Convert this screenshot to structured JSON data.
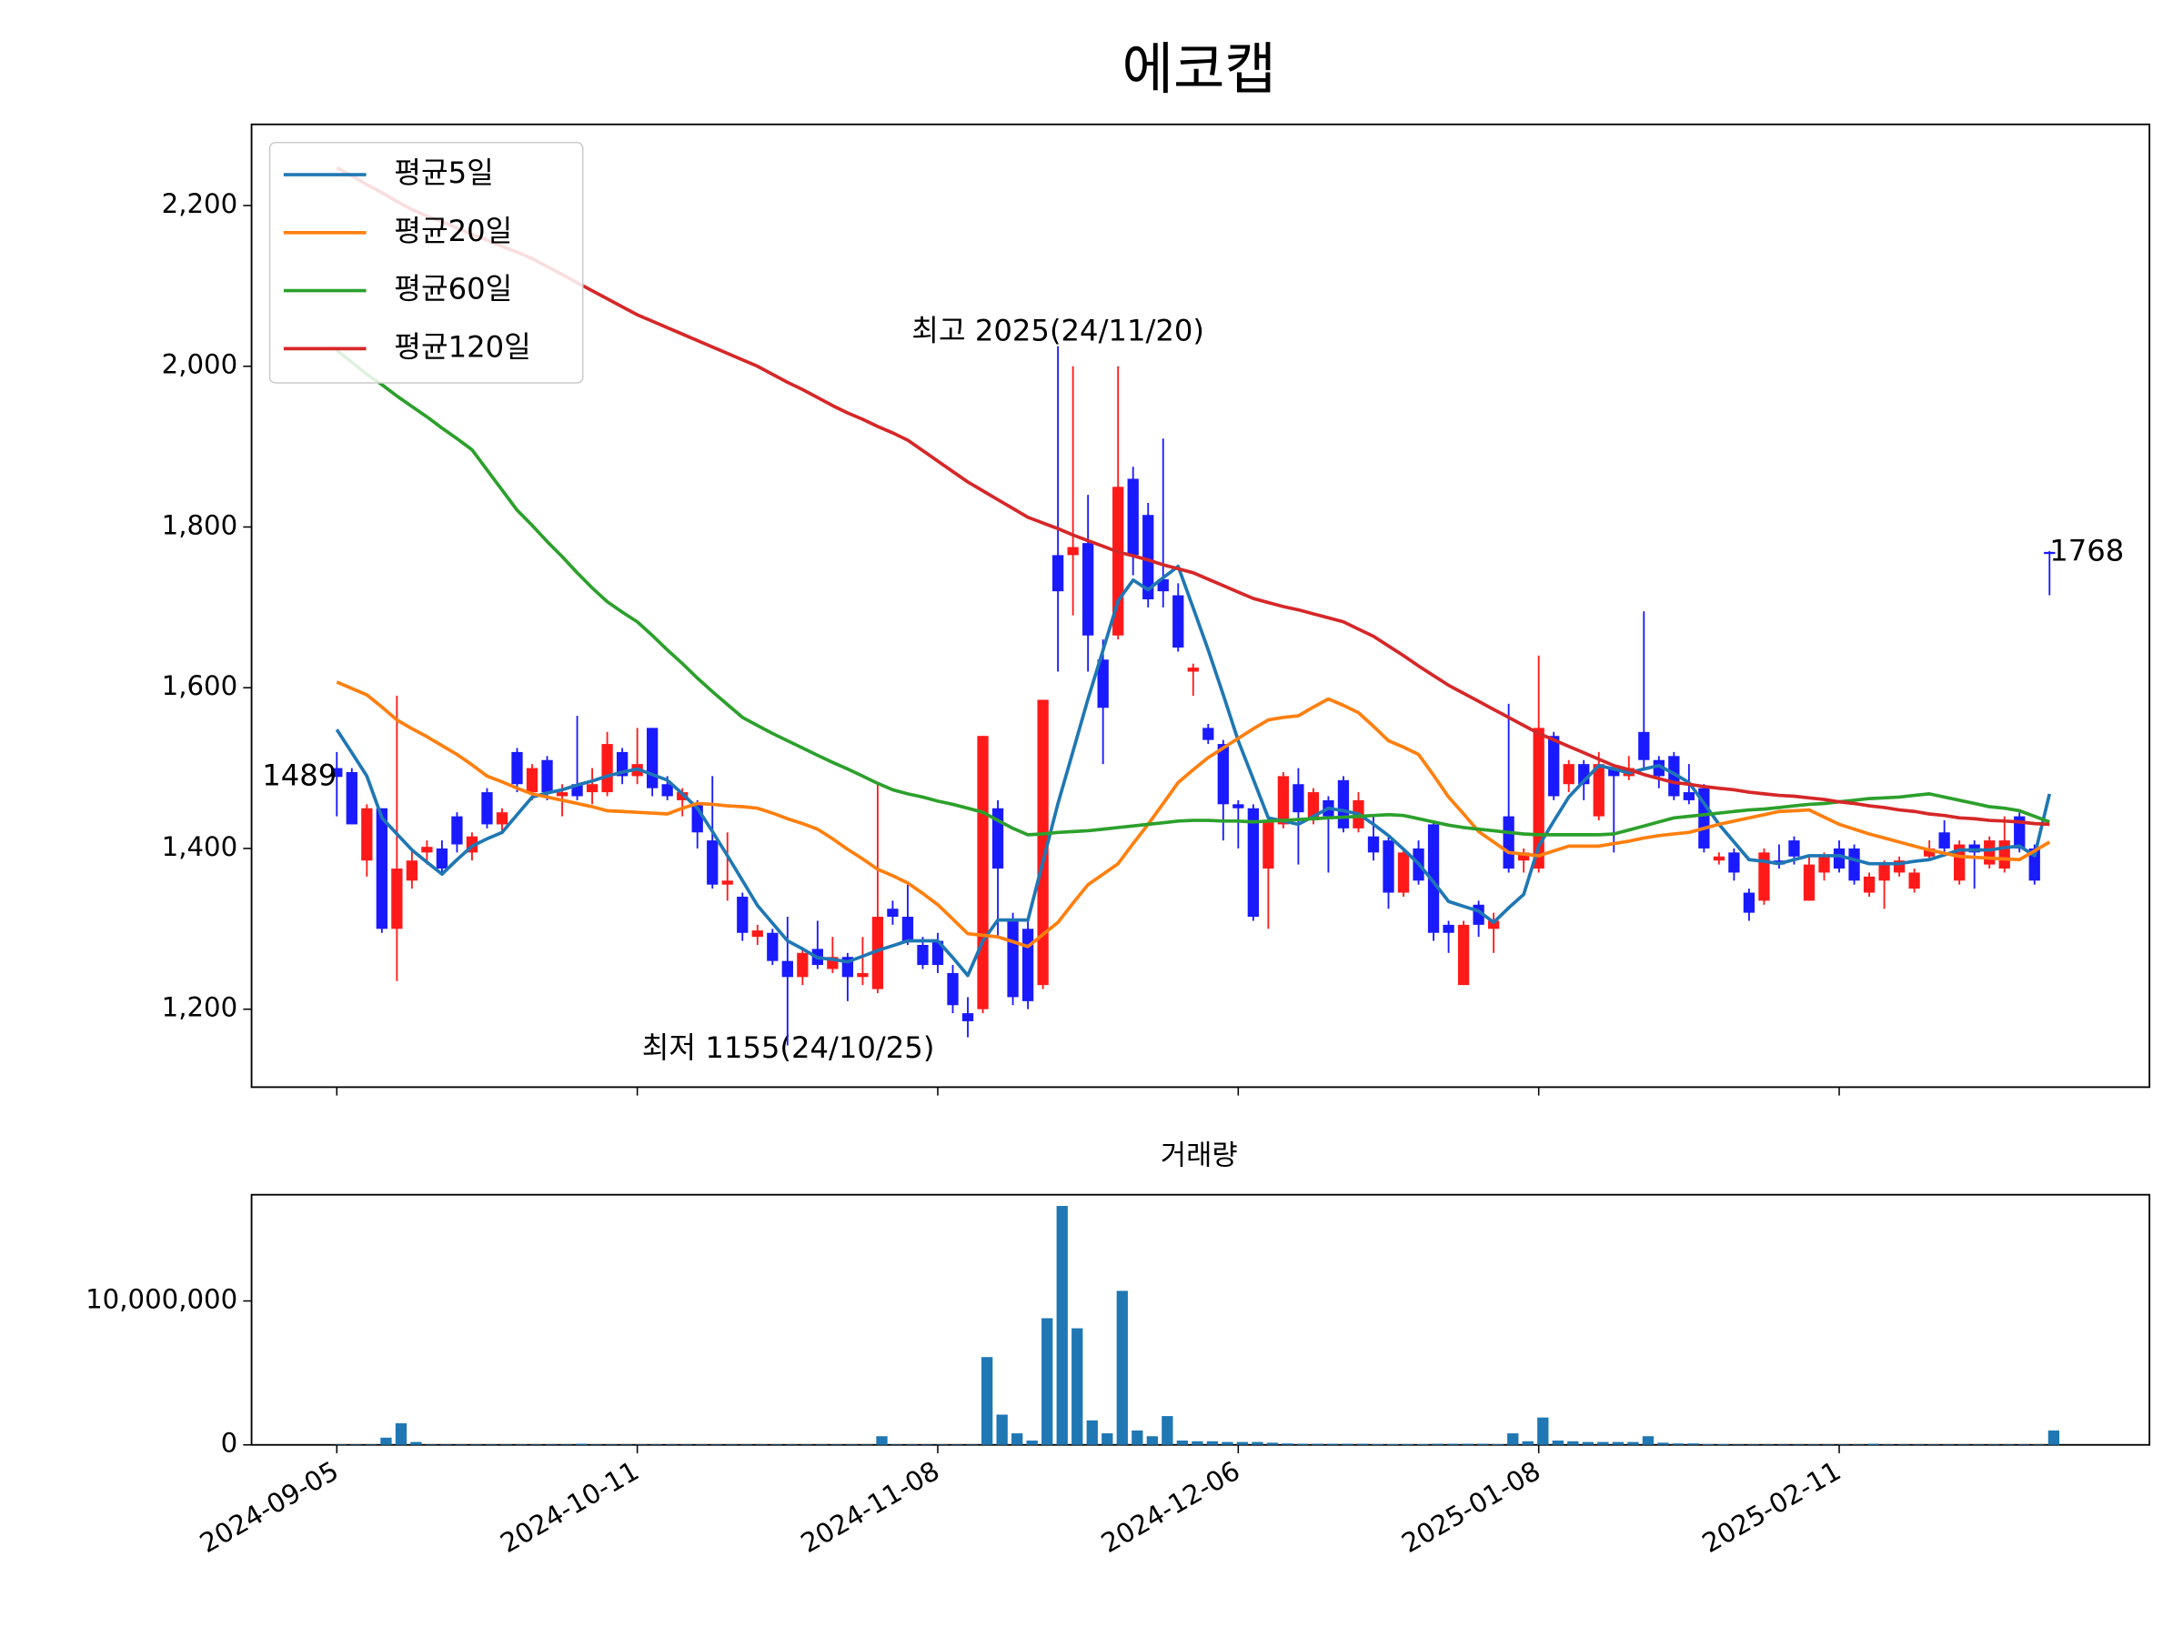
{
  "chart_data": [
    {
      "type": "candlestick",
      "title": "에코캡",
      "categories": [
        "2024-09-05",
        null,
        null,
        null,
        null,
        null,
        null,
        null,
        null,
        null,
        null,
        null,
        null,
        null,
        null,
        null,
        null,
        null,
        null,
        null,
        "2024-10-11",
        null,
        null,
        null,
        null,
        null,
        null,
        null,
        null,
        null,
        null,
        null,
        null,
        null,
        null,
        null,
        null,
        null,
        null,
        null,
        "2024-11-08",
        null,
        null,
        null,
        null,
        null,
        null,
        null,
        null,
        null,
        null,
        null,
        null,
        null,
        null,
        null,
        null,
        null,
        null,
        null,
        "2024-12-06",
        null,
        null,
        null,
        null,
        null,
        null,
        null,
        null,
        null,
        null,
        null,
        null,
        null,
        null,
        null,
        null,
        null,
        null,
        null,
        "2025-01-08",
        null,
        null,
        null,
        null,
        null,
        null,
        null,
        null,
        null,
        null,
        null,
        null,
        null,
        null,
        null,
        null,
        null,
        null,
        null,
        "2025-02-11",
        null,
        null,
        null,
        null,
        null,
        null,
        null,
        null,
        null,
        null,
        null,
        null,
        null,
        null
      ],
      "open": [
        1500,
        1495,
        1385,
        1450,
        1300,
        1360,
        1395,
        1400,
        1440,
        1395,
        1470,
        1430,
        1520,
        1470,
        1510,
        1465,
        1480,
        1470,
        1470,
        1520,
        1490,
        1550,
        1480,
        1460,
        1455,
        1410,
        1355,
        1340,
        1290,
        1295,
        1260,
        1240,
        1275,
        1250,
        1265,
        1240,
        1225,
        1325,
        1315,
        1280,
        1285,
        1245,
        1195,
        1200,
        1450,
        1310,
        1300,
        1230,
        1765,
        1765,
        1780,
        1635,
        1665,
        1860,
        1815,
        1735,
        1715,
        1620,
        1550,
        1530,
        1455,
        1450,
        1375,
        1430,
        1480,
        1435,
        1460,
        1485,
        1425,
        1415,
        1410,
        1345,
        1400,
        1430,
        1305,
        1230,
        1330,
        1300,
        1440,
        1385,
        1375,
        1540,
        1480,
        1505,
        1440,
        1500,
        1490,
        1545,
        1510,
        1515,
        1470,
        1475,
        1385,
        1395,
        1345,
        1335,
        1385,
        1410,
        1335,
        1370,
        1400,
        1400,
        1345,
        1360,
        1370,
        1350,
        1390,
        1420,
        1360,
        1405,
        1380,
        1375,
        1440,
        1400,
        1769
      ],
      "high": [
        1520,
        1500,
        1455,
        1450,
        1590,
        1400,
        1410,
        1410,
        1445,
        1420,
        1475,
        1450,
        1525,
        1505,
        1515,
        1480,
        1565,
        1500,
        1545,
        1525,
        1550,
        1550,
        1490,
        1475,
        1460,
        1490,
        1420,
        1345,
        1305,
        1300,
        1315,
        1275,
        1310,
        1290,
        1270,
        1290,
        1480,
        1335,
        1355,
        1290,
        1295,
        1255,
        1215,
        1540,
        1460,
        1320,
        1310,
        1585,
        2025,
        2000,
        1840,
        1660,
        2000,
        1875,
        1830,
        1910,
        1730,
        1630,
        1555,
        1535,
        1460,
        1455,
        1440,
        1495,
        1500,
        1475,
        1465,
        1490,
        1470,
        1440,
        1415,
        1400,
        1410,
        1435,
        1310,
        1310,
        1335,
        1320,
        1580,
        1400,
        1640,
        1545,
        1510,
        1510,
        1520,
        1505,
        1515,
        1695,
        1515,
        1520,
        1505,
        1480,
        1395,
        1400,
        1350,
        1400,
        1405,
        1415,
        1390,
        1395,
        1410,
        1405,
        1370,
        1385,
        1390,
        1375,
        1410,
        1435,
        1410,
        1410,
        1415,
        1440,
        1445,
        1405,
        1770
      ],
      "low": [
        1440,
        1430,
        1365,
        1295,
        1235,
        1350,
        1380,
        1370,
        1395,
        1385,
        1425,
        1420,
        1470,
        1460,
        1460,
        1440,
        1460,
        1455,
        1465,
        1480,
        1480,
        1465,
        1460,
        1440,
        1400,
        1350,
        1335,
        1285,
        1280,
        1255,
        1155,
        1230,
        1250,
        1245,
        1210,
        1230,
        1220,
        1305,
        1280,
        1250,
        1245,
        1195,
        1165,
        1195,
        1290,
        1205,
        1200,
        1225,
        1620,
        1690,
        1620,
        1505,
        1660,
        1740,
        1700,
        1700,
        1645,
        1590,
        1530,
        1410,
        1400,
        1310,
        1300,
        1425,
        1380,
        1430,
        1370,
        1420,
        1420,
        1385,
        1325,
        1340,
        1355,
        1285,
        1270,
        1230,
        1290,
        1270,
        1370,
        1370,
        1370,
        1460,
        1470,
        1460,
        1435,
        1395,
        1485,
        1500,
        1475,
        1460,
        1455,
        1395,
        1380,
        1360,
        1310,
        1330,
        1375,
        1380,
        1335,
        1360,
        1370,
        1355,
        1340,
        1325,
        1365,
        1345,
        1385,
        1395,
        1355,
        1350,
        1375,
        1370,
        1395,
        1355,
        1715
      ],
      "close": [
        1489,
        1430,
        1450,
        1300,
        1375,
        1385,
        1402,
        1375,
        1405,
        1415,
        1430,
        1445,
        1480,
        1500,
        1470,
        1470,
        1465,
        1480,
        1530,
        1490,
        1505,
        1475,
        1465,
        1470,
        1420,
        1355,
        1360,
        1295,
        1298,
        1260,
        1240,
        1270,
        1255,
        1265,
        1240,
        1245,
        1315,
        1315,
        1285,
        1255,
        1255,
        1205,
        1185,
        1540,
        1375,
        1215,
        1210,
        1585,
        1720,
        1775,
        1665,
        1575,
        1850,
        1765,
        1710,
        1720,
        1650,
        1625,
        1535,
        1455,
        1450,
        1315,
        1435,
        1490,
        1445,
        1470,
        1440,
        1425,
        1460,
        1395,
        1345,
        1395,
        1360,
        1295,
        1295,
        1305,
        1305,
        1310,
        1375,
        1395,
        1550,
        1465,
        1505,
        1480,
        1505,
        1490,
        1500,
        1510,
        1490,
        1465,
        1460,
        1400,
        1390,
        1370,
        1320,
        1395,
        1380,
        1390,
        1380,
        1390,
        1375,
        1360,
        1365,
        1380,
        1385,
        1370,
        1400,
        1400,
        1405,
        1395,
        1410,
        1410,
        1400,
        1360,
        1768
      ],
      "up_color": "#ff1a1a",
      "down_color": "#1a1aff",
      "ylim": [
        1103,
        2301
      ],
      "yticks": [
        {
          "value": 1200,
          "label": "1,200"
        },
        {
          "value": 1400,
          "label": "1,400"
        },
        {
          "value": 1600,
          "label": "1,600"
        },
        {
          "value": 1800,
          "label": "1,800"
        },
        {
          "value": 2000,
          "label": "2,000"
        },
        {
          "value": 2200,
          "label": "2,200"
        }
      ],
      "legend": "upper left",
      "series": [
        {
          "name": "평균5일",
          "color": "#1f77b4",
          "values": [
            1548,
            1519,
            1490,
            1438,
            1418,
            1398,
            1383,
            1368,
            1386,
            1403,
            1412,
            1420,
            1442,
            1464,
            1469,
            1473,
            1479,
            1484,
            1490,
            1495,
            1499,
            1492,
            1485,
            1468,
            1450,
            1421,
            1391,
            1360,
            1329,
            1307,
            1285,
            1275,
            1264,
            1262,
            1259,
            1266,
            1273,
            1279,
            1285,
            1285,
            1285,
            1264,
            1242,
            1285,
            1311,
            1311,
            1311,
            1384,
            1456,
            1521,
            1586,
            1647,
            1708,
            1734,
            1722,
            1737,
            1751,
            1699,
            1647,
            1591,
            1534,
            1486,
            1438,
            1434,
            1430,
            1440,
            1450,
            1447,
            1443,
            1430,
            1416,
            1399,
            1381,
            1358,
            1334,
            1328,
            1322,
            1308,
            1326,
            1343,
            1403,
            1434,
            1464,
            1484,
            1503,
            1499,
            1494,
            1499,
            1503,
            1493,
            1482,
            1456,
            1430,
            1408,
            1386,
            1384,
            1381,
            1386,
            1391,
            1391,
            1391,
            1386,
            1381,
            1381,
            1381,
            1384,
            1386,
            1392,
            1398,
            1398,
            1398,
            1401,
            1403,
            1391,
            1468
          ]
        },
        {
          "name": "평균20일",
          "color": "#ff7f0e",
          "values": [
            1607,
            1599,
            1591,
            1576,
            1560,
            1549,
            1539,
            1528,
            1517,
            1504,
            1490,
            1483,
            1475,
            1468,
            1464,
            1460,
            1456,
            1452,
            1447,
            1446,
            1445,
            1444,
            1443,
            1450,
            1456,
            1455,
            1453,
            1452,
            1450,
            1444,
            1437,
            1431,
            1424,
            1412,
            1399,
            1387,
            1374,
            1366,
            1357,
            1344,
            1330,
            1312,
            1294,
            1292,
            1290,
            1284,
            1278,
            1293,
            1308,
            1332,
            1355,
            1368,
            1381,
            1406,
            1430,
            1456,
            1482,
            1498,
            1513,
            1525,
            1537,
            1549,
            1560,
            1563,
            1565,
            1576,
            1586,
            1578,
            1569,
            1552,
            1534,
            1526,
            1517,
            1491,
            1464,
            1443,
            1421,
            1408,
            1395,
            1393,
            1391,
            1397,
            1403,
            1403,
            1403,
            1406,
            1409,
            1413,
            1416,
            1418,
            1420,
            1425,
            1430,
            1434,
            1438,
            1442,
            1446,
            1447,
            1448,
            1439,
            1430,
            1424,
            1418,
            1413,
            1408,
            1403,
            1398,
            1394,
            1390,
            1389,
            1388,
            1387,
            1386,
            1397,
            1408
          ]
        },
        {
          "name": "평균60일",
          "color": "#2ca02c",
          "values": [
            2020,
            2005,
            1990,
            1977,
            1963,
            1950,
            1937,
            1923,
            1910,
            1896,
            1871,
            1846,
            1821,
            1802,
            1782,
            1763,
            1743,
            1724,
            1707,
            1694,
            1682,
            1665,
            1647,
            1630,
            1612,
            1595,
            1579,
            1563,
            1553,
            1543,
            1534,
            1525,
            1516,
            1507,
            1499,
            1490,
            1481,
            1473,
            1468,
            1464,
            1459,
            1455,
            1450,
            1445,
            1435,
            1425,
            1417,
            1418,
            1420,
            1421,
            1422,
            1424,
            1426,
            1428,
            1430,
            1432,
            1434,
            1435,
            1435,
            1434,
            1434,
            1433,
            1434,
            1435,
            1436,
            1437,
            1438,
            1439,
            1440,
            1441,
            1442,
            1441,
            1437,
            1433,
            1429,
            1426,
            1424,
            1422,
            1420,
            1418,
            1417,
            1417,
            1417,
            1417,
            1417,
            1418,
            1423,
            1428,
            1433,
            1438,
            1440,
            1442,
            1444,
            1446,
            1448,
            1449,
            1451,
            1453,
            1455,
            1456,
            1458,
            1460,
            1462,
            1463,
            1464,
            1466,
            1468,
            1464,
            1460,
            1456,
            1452,
            1450,
            1447,
            1440,
            1433
          ]
        },
        {
          "name": "평균120일",
          "color": "#d62728",
          "values": [
            2247,
            2237,
            2226,
            2216,
            2205,
            2195,
            2187,
            2180,
            2172,
            2164,
            2157,
            2149,
            2142,
            2134,
            2124,
            2114,
            2104,
            2094,
            2084,
            2074,
            2064,
            2056,
            2048,
            2040,
            2032,
            2024,
            2016,
            2008,
            2000,
            1990,
            1980,
            1971,
            1961,
            1951,
            1942,
            1934,
            1925,
            1917,
            1908,
            1895,
            1882,
            1869,
            1856,
            1845,
            1834,
            1823,
            1812,
            1805,
            1798,
            1790,
            1783,
            1776,
            1769,
            1764,
            1759,
            1753,
            1748,
            1743,
            1735,
            1727,
            1719,
            1711,
            1706,
            1701,
            1697,
            1692,
            1687,
            1682,
            1673,
            1664,
            1652,
            1640,
            1627,
            1615,
            1603,
            1593,
            1583,
            1573,
            1563,
            1553,
            1543,
            1535,
            1527,
            1519,
            1511,
            1503,
            1498,
            1492,
            1487,
            1482,
            1480,
            1477,
            1475,
            1473,
            1470,
            1468,
            1466,
            1465,
            1463,
            1461,
            1458,
            1456,
            1453,
            1451,
            1448,
            1446,
            1443,
            1441,
            1438,
            1437,
            1435,
            1434,
            1433,
            1431,
            1430
          ]
        }
      ],
      "annotations": [
        {
          "text": "최고 2025(24/11/20)",
          "color": "#ff0000"
        },
        {
          "text": "최저 1155(24/10/25)",
          "color": "#0000ff"
        }
      ]
    },
    {
      "type": "bar",
      "title": "거래량",
      "color": "#1f77b4",
      "values": [
        30000,
        30000,
        30000,
        500000,
        1500000,
        200000,
        30000,
        30000,
        30000,
        30000,
        30000,
        30000,
        30000,
        30000,
        30000,
        30000,
        80000,
        30000,
        30000,
        30000,
        30000,
        30000,
        30000,
        30000,
        30000,
        30000,
        30000,
        30000,
        30000,
        30000,
        30000,
        30000,
        30000,
        30000,
        30000,
        30000,
        600000,
        30000,
        30000,
        30000,
        30000,
        30000,
        30000,
        6100000,
        2100000,
        800000,
        300000,
        8800000,
        16600000,
        8100000,
        1700000,
        800000,
        10700000,
        1000000,
        600000,
        2000000,
        300000,
        250000,
        250000,
        200000,
        200000,
        200000,
        150000,
        100000,
        80000,
        80000,
        80000,
        80000,
        80000,
        50000,
        50000,
        50000,
        50000,
        80000,
        80000,
        80000,
        80000,
        50000,
        800000,
        250000,
        1900000,
        300000,
        250000,
        200000,
        200000,
        200000,
        200000,
        600000,
        150000,
        100000,
        100000,
        50000,
        50000,
        30000,
        30000,
        30000,
        30000,
        30000,
        30000,
        30000,
        30000,
        30000,
        80000,
        30000,
        30000,
        30000,
        30000,
        30000,
        30000,
        30000,
        30000,
        30000,
        30000,
        30000,
        1000000
      ],
      "ylim": [
        0,
        17380000
      ],
      "yticks": [
        0,
        {
          "value": 10000000,
          "label": "10,000,000"
        }
      ]
    }
  ]
}
